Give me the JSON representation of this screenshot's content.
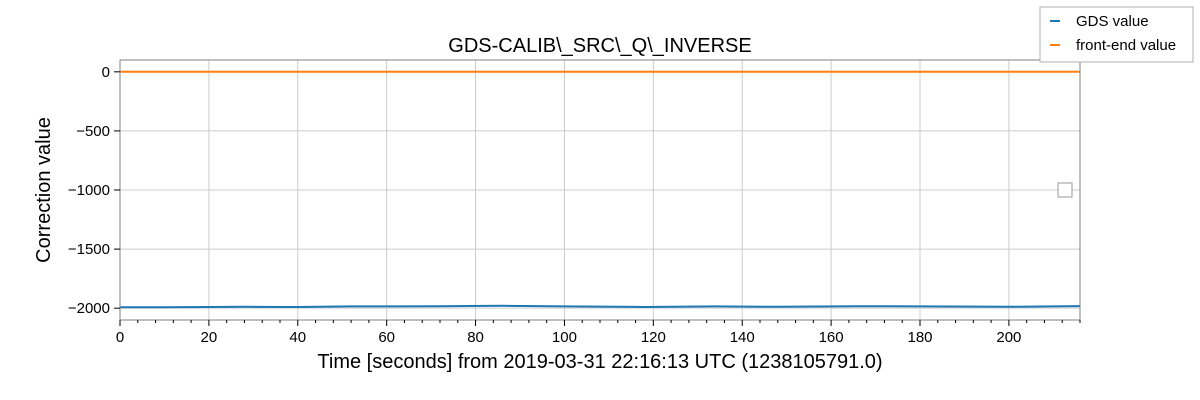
{
  "chart_data": {
    "type": "line",
    "title": "GDS-CALIB\\_SRC\\_Q\\_INVERSE",
    "xlabel": "Time [seconds] from 2019-03-31 22:16:13 UTC (1238105791.0)",
    "ylabel": "Correction value",
    "xlim": [
      0,
      216
    ],
    "ylim": [
      -2100,
      100
    ],
    "xticks": [
      0,
      20,
      40,
      60,
      80,
      100,
      120,
      140,
      160,
      180,
      200
    ],
    "xtick_labels": [
      "0",
      "20",
      "40",
      "60",
      "80",
      "100",
      "120",
      "140",
      "160",
      "180",
      "200"
    ],
    "yticks": [
      0,
      -500,
      -1000,
      -1500,
      -2000
    ],
    "ytick_labels": [
      "0",
      "−500",
      "−1000",
      "−1500",
      "−2000"
    ],
    "grid": true,
    "legend_position": "top-right",
    "series": [
      {
        "name": "GDS value",
        "color": "#1f77b4",
        "x": [
          0,
          10,
          20,
          28,
          40,
          52,
          62,
          72,
          86,
          100,
          118,
          134,
          148,
          166,
          180,
          200,
          216
        ],
        "y": [
          -1992,
          -1992,
          -1990,
          -1988,
          -1990,
          -1985,
          -1985,
          -1983,
          -1980,
          -1985,
          -1990,
          -1985,
          -1988,
          -1983,
          -1985,
          -1988,
          -1982
        ]
      },
      {
        "name": "front-end value",
        "color": "#ff7f0e",
        "x": [
          0,
          216
        ],
        "y": [
          0,
          0
        ]
      }
    ]
  }
}
